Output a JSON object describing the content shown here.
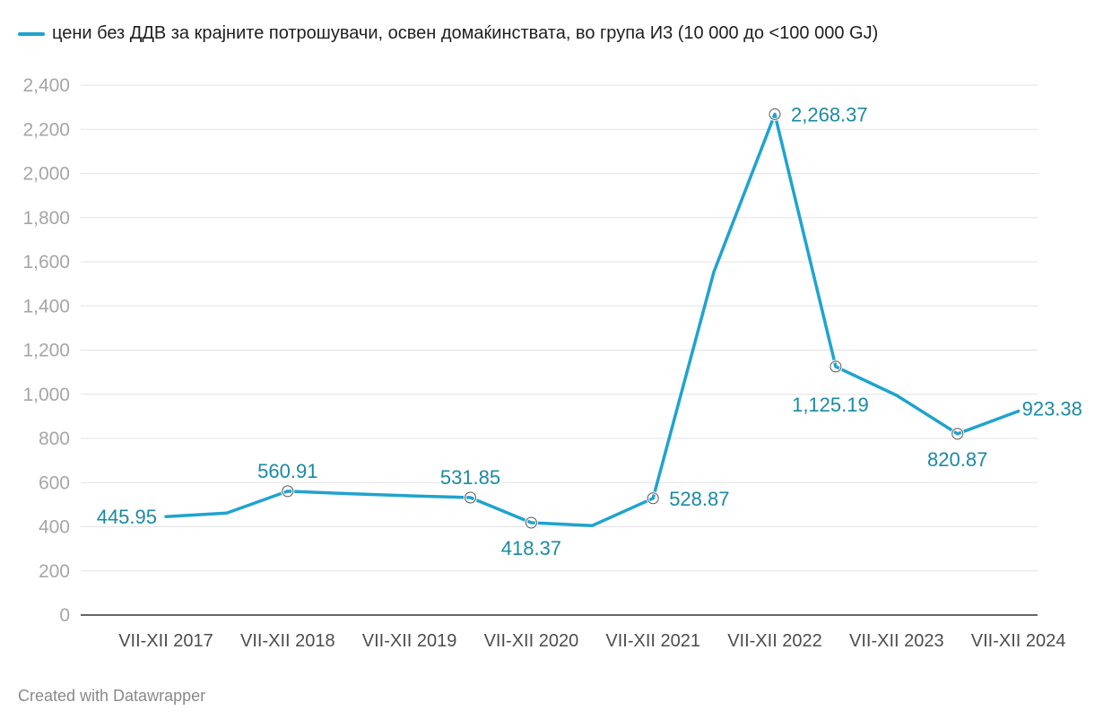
{
  "chart_data": {
    "type": "line",
    "x": [
      "VII-XII 2017",
      "",
      "VII-XII 2018",
      "",
      "VII-XII 2019",
      "",
      "VII-XII 2020",
      "",
      "VII-XII 2021",
      "",
      "VII-XII 2022",
      "",
      "VII-XII 2023",
      "",
      "VII-XII 2024"
    ],
    "tick_labels": [
      "VII-XII 2017",
      "VII-XII 2018",
      "VII-XII 2019",
      "VII-XII 2020",
      "VII-XII 2021",
      "VII-XII 2022",
      "VII-XII 2023",
      "VII-XII 2024"
    ],
    "series": [
      {
        "name": "цени без ДДВ за крајните потрошувачи, освен домаќинствата, во група И3 (10 000 до <100 000 GJ)",
        "color": "#1fa3cf",
        "values": [
          445.95,
          462,
          560.91,
          550,
          540,
          531.85,
          418.37,
          405,
          528.87,
          1555,
          2268.37,
          1125.19,
          995,
          820.87,
          923.38
        ]
      }
    ],
    "data_labels": [
      {
        "index": 0,
        "text": "445.95"
      },
      {
        "index": 2,
        "text": "560.91"
      },
      {
        "index": 5,
        "text": "531.85"
      },
      {
        "index": 6,
        "text": "418.37"
      },
      {
        "index": 8,
        "text": "528.87"
      },
      {
        "index": 10,
        "text": "2,268.37"
      },
      {
        "index": 11,
        "text": "1,125.19"
      },
      {
        "index": 13,
        "text": "820.87"
      },
      {
        "index": 14,
        "text": "923.38"
      }
    ],
    "yticks": [
      0,
      200,
      400,
      600,
      800,
      1000,
      1200,
      1400,
      1600,
      1800,
      2000,
      2200,
      2400
    ],
    "ytick_labels": [
      "0",
      "200",
      "400",
      "600",
      "800",
      "1,000",
      "1,200",
      "1,400",
      "1,600",
      "1,800",
      "2,000",
      "2,200",
      "2,400"
    ],
    "ylim": [
      0,
      2400
    ],
    "grid": true,
    "legend_position": "top-left",
    "title": "",
    "xlabel": "",
    "ylabel": ""
  },
  "footer": "Created with Datawrapper"
}
